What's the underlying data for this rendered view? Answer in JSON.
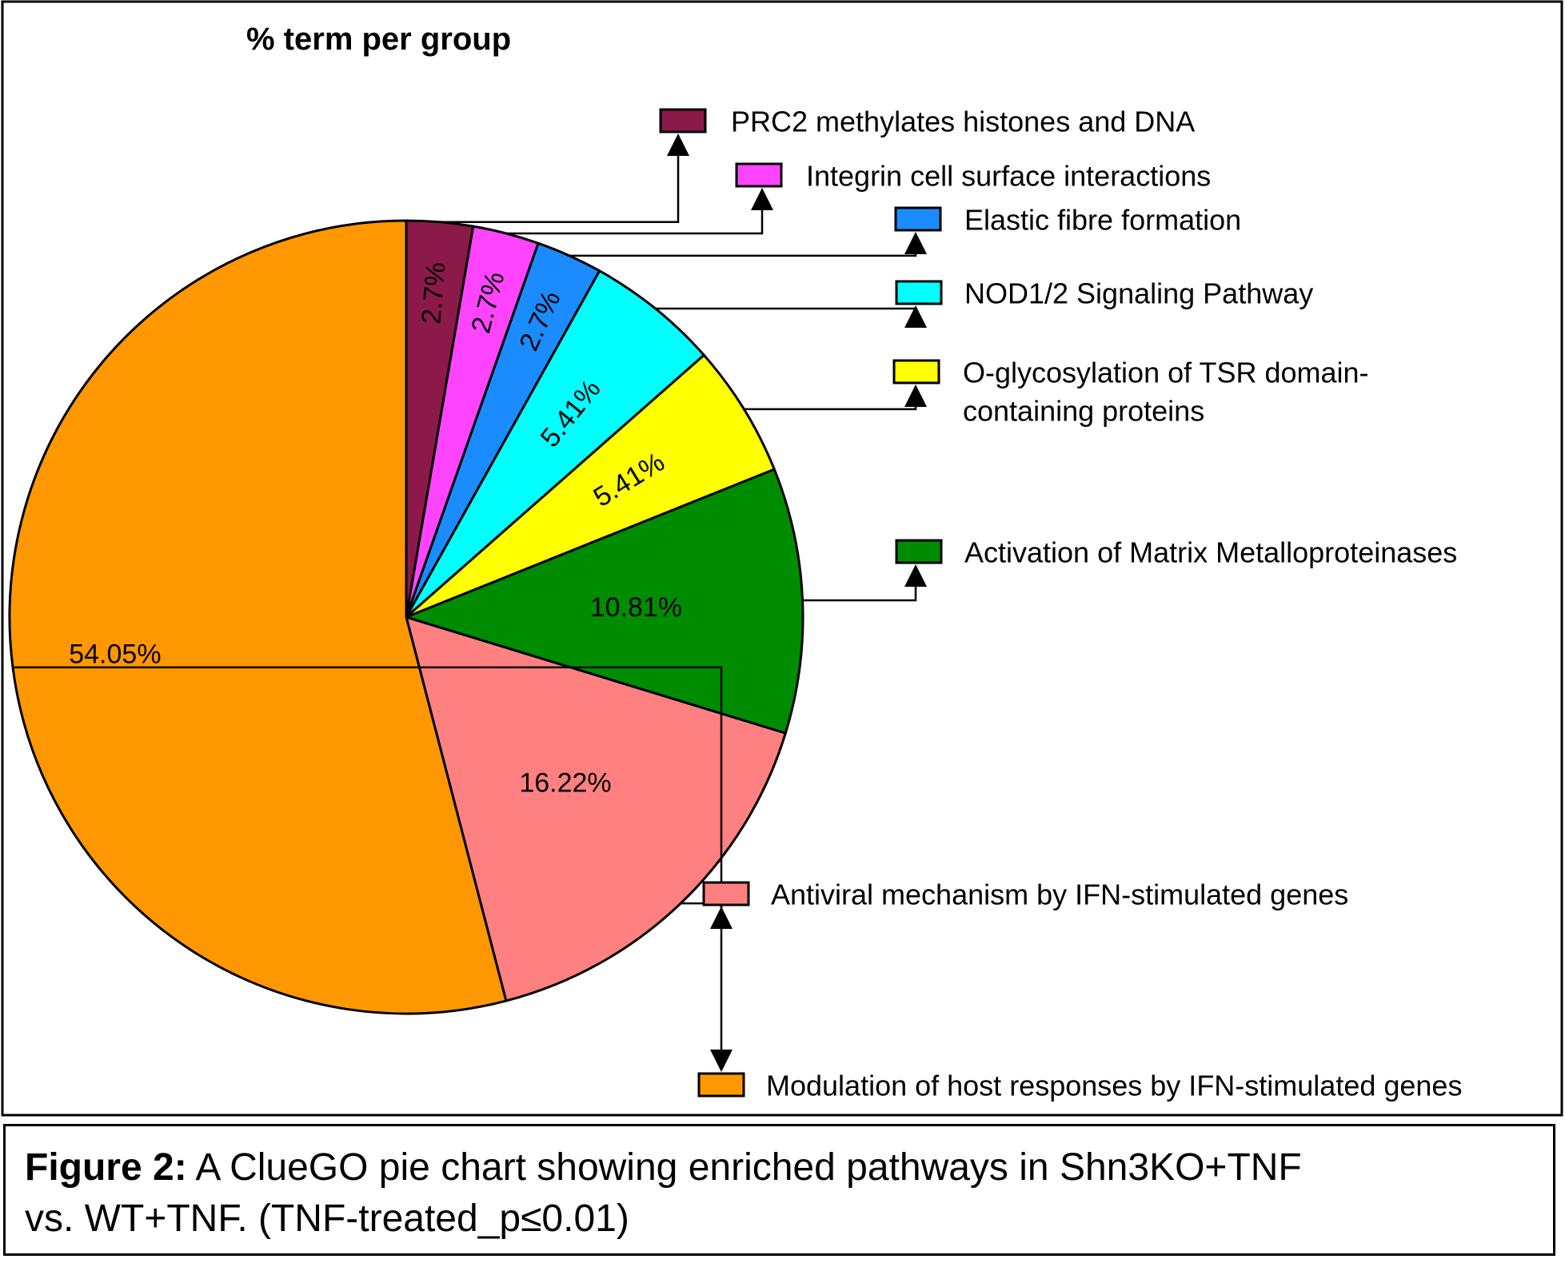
{
  "chart_data": {
    "type": "pie",
    "title": "% term per group",
    "start_angle_deg": 0,
    "direction": "clockwise",
    "slices": [
      {
        "label": "PRC2 methylates histones and DNA",
        "value": 2.7,
        "value_label": "2.7%",
        "color": "#8b1a4a"
      },
      {
        "label": "Integrin cell surface interactions",
        "value": 2.7,
        "value_label": "2.7%",
        "color": "#ff44ff"
      },
      {
        "label": "Elastic fibre formation",
        "value": 2.7,
        "value_label": "2.7%",
        "color": "#1a8cff"
      },
      {
        "label": "NOD1/2 Signaling Pathway",
        "value": 5.41,
        "value_label": "5.41%",
        "color": "#00ffff"
      },
      {
        "label": "O-glycosylation of TSR domain-containing proteins",
        "label_lines": [
          "O-glycosylation of TSR domain-",
          "containing proteins"
        ],
        "value": 5.41,
        "value_label": "5.41%",
        "color": "#ffff00"
      },
      {
        "label": "Activation of Matrix Metalloproteinases",
        "value": 10.81,
        "value_label": "10.81%",
        "color": "#008c00"
      },
      {
        "label": "Antiviral mechanism by IFN-stimulated genes",
        "value": 16.22,
        "value_label": "16.22%",
        "color": "#ff8080"
      },
      {
        "label": "Modulation of host responses by IFN-stimulated genes",
        "value": 54.05,
        "value_label": "54.05%",
        "color": "#ff9800"
      }
    ]
  },
  "caption": {
    "bold": "Figure 2:",
    "line1": " A ClueGO pie chart showing enriched pathways in Shn3KO+TNF",
    "line2": "vs. WT+TNF. (TNF-treated_p≤0.01)"
  }
}
